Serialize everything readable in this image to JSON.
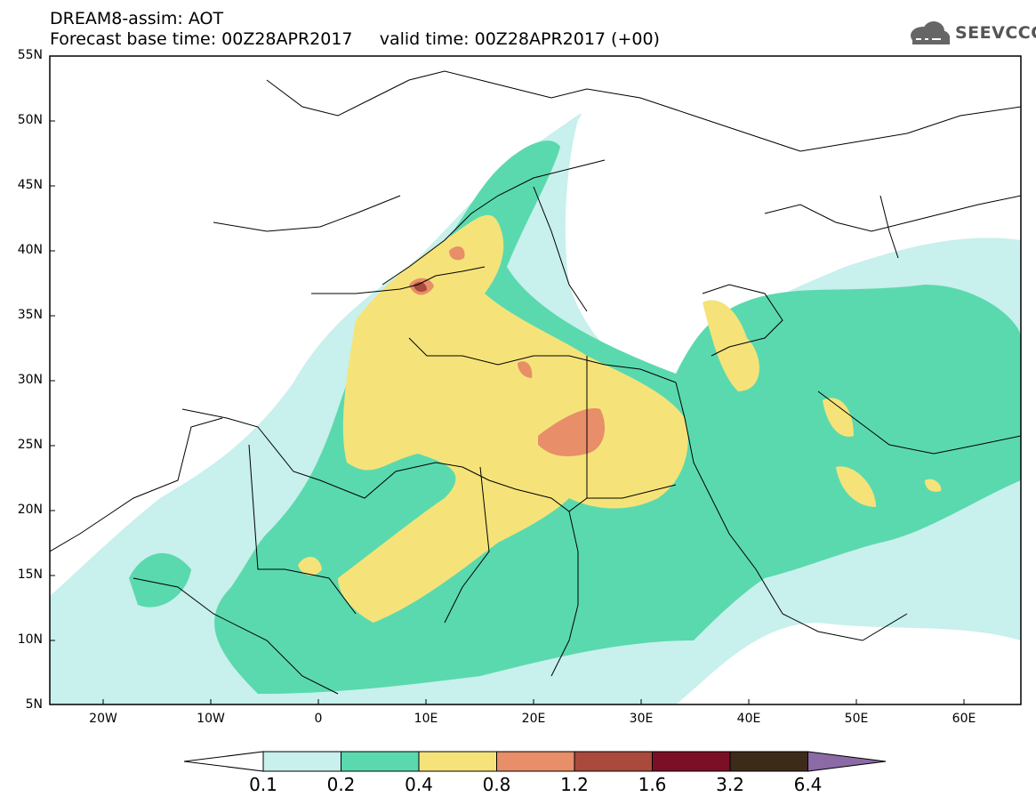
{
  "header": {
    "title_line1": "DREAM8-assim: AOT",
    "title_line2": "Forecast base time: 00Z28APR2017     valid time: 00Z28APR2017 (+00)",
    "logo_text": "SEEVCCC"
  },
  "axes": {
    "lat_labels": [
      "55N",
      "50N",
      "45N",
      "40N",
      "35N",
      "30N",
      "25N",
      "20N",
      "15N",
      "10N",
      "5N"
    ],
    "lon_labels": [
      "20W",
      "10W",
      "0",
      "10E",
      "20E",
      "30E",
      "40E",
      "50E",
      "60E"
    ]
  },
  "legend": {
    "levels": [
      "0.1",
      "0.2",
      "0.4",
      "0.8",
      "1.2",
      "1.6",
      "3.2",
      "6.4"
    ],
    "colors": [
      "#c8f0ec",
      "#5ad9ae",
      "#f5e37a",
      "#e88e68",
      "#a94a3c",
      "#7a0f26",
      "#3d2b1a",
      "#8c6aa6"
    ]
  },
  "colors": {
    "land_outline": "#000000",
    "frame": "#000000"
  }
}
